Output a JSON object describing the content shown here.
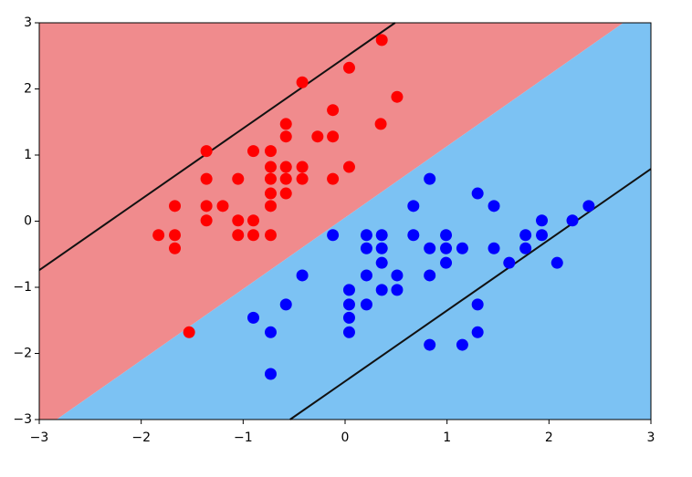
{
  "chart_data": {
    "type": "scatter",
    "xlim": [
      -3,
      3
    ],
    "ylim": [
      -3,
      3
    ],
    "xticks": [
      {
        "value": -3,
        "label": "−3"
      },
      {
        "value": -2,
        "label": "−2"
      },
      {
        "value": -1,
        "label": "−1"
      },
      0,
      1,
      2,
      3
    ],
    "yticks": [
      {
        "value": -3,
        "label": "−3"
      },
      {
        "value": -2,
        "label": "−2"
      },
      {
        "value": -1,
        "label": "−1"
      },
      0,
      1,
      2,
      3
    ],
    "boundary": {
      "x": [
        -2.83,
        2.73
      ],
      "y": [
        -3,
        3
      ],
      "colors": [
        "#f08b8d",
        "#7cc2f3"
      ]
    },
    "lines": [
      {
        "color": "#111111",
        "x": [
          -3,
          0.49
        ],
        "y": [
          -0.74,
          3
        ]
      },
      {
        "color": "#111111",
        "x": [
          -0.54,
          3
        ],
        "y": [
          -3,
          0.79
        ]
      }
    ],
    "series": [
      {
        "color": "#ff0000",
        "x": [
          0.36,
          0.04,
          -0.42,
          0.51,
          -0.58,
          -0.12,
          0.35,
          -0.58,
          -0.27,
          -0.12,
          -1.36,
          -0.9,
          -0.73,
          -0.73,
          -0.58,
          -0.42,
          0.04,
          -1.36,
          -1.05,
          -0.73,
          -0.58,
          -0.42,
          -0.12,
          -0.73,
          -0.58,
          -1.67,
          -1.36,
          -1.2,
          -0.73,
          -1.36,
          -1.05,
          -0.9,
          -1.83,
          -1.67,
          -1.05,
          -0.9,
          -0.73,
          -1.67,
          -1.53
        ],
        "values": [
          2.74,
          2.32,
          2.1,
          1.88,
          1.47,
          1.68,
          1.47,
          1.28,
          1.28,
          1.28,
          1.06,
          1.06,
          1.06,
          0.82,
          0.82,
          0.82,
          0.82,
          0.64,
          0.64,
          0.64,
          0.64,
          0.64,
          0.64,
          0.42,
          0.42,
          0.23,
          0.23,
          0.23,
          0.23,
          0.01,
          0.01,
          0.01,
          -0.21,
          -0.21,
          -0.21,
          -0.21,
          -0.21,
          -0.41,
          -1.68
        ]
      },
      {
        "color": "#0000ff",
        "x": [
          0.83,
          1.3,
          0.67,
          1.46,
          2.39,
          1.93,
          2.23,
          -0.12,
          0.21,
          0.36,
          0.67,
          0.99,
          1.77,
          1.93,
          0.21,
          0.36,
          0.83,
          0.99,
          1.15,
          1.46,
          1.77,
          0.36,
          0.99,
          1.61,
          2.08,
          -0.42,
          0.21,
          0.51,
          0.83,
          0.04,
          0.36,
          0.51,
          0.04,
          0.21,
          -0.58,
          1.3,
          0.04,
          -0.9,
          0.04,
          -0.73,
          1.3,
          0.83,
          1.15,
          -0.73
        ],
        "values": [
          0.64,
          0.42,
          0.23,
          0.23,
          0.23,
          0.01,
          0.01,
          -0.21,
          -0.21,
          -0.21,
          -0.21,
          -0.21,
          -0.21,
          -0.21,
          -0.41,
          -0.41,
          -0.41,
          -0.41,
          -0.41,
          -0.41,
          -0.41,
          -0.63,
          -0.63,
          -0.63,
          -0.63,
          -0.82,
          -0.82,
          -0.82,
          -0.82,
          -1.04,
          -1.04,
          -1.04,
          -1.26,
          -1.26,
          -1.26,
          -1.26,
          -1.46,
          -1.46,
          -1.68,
          -1.68,
          -1.68,
          -1.87,
          -1.87,
          -2.31
        ]
      }
    ]
  }
}
